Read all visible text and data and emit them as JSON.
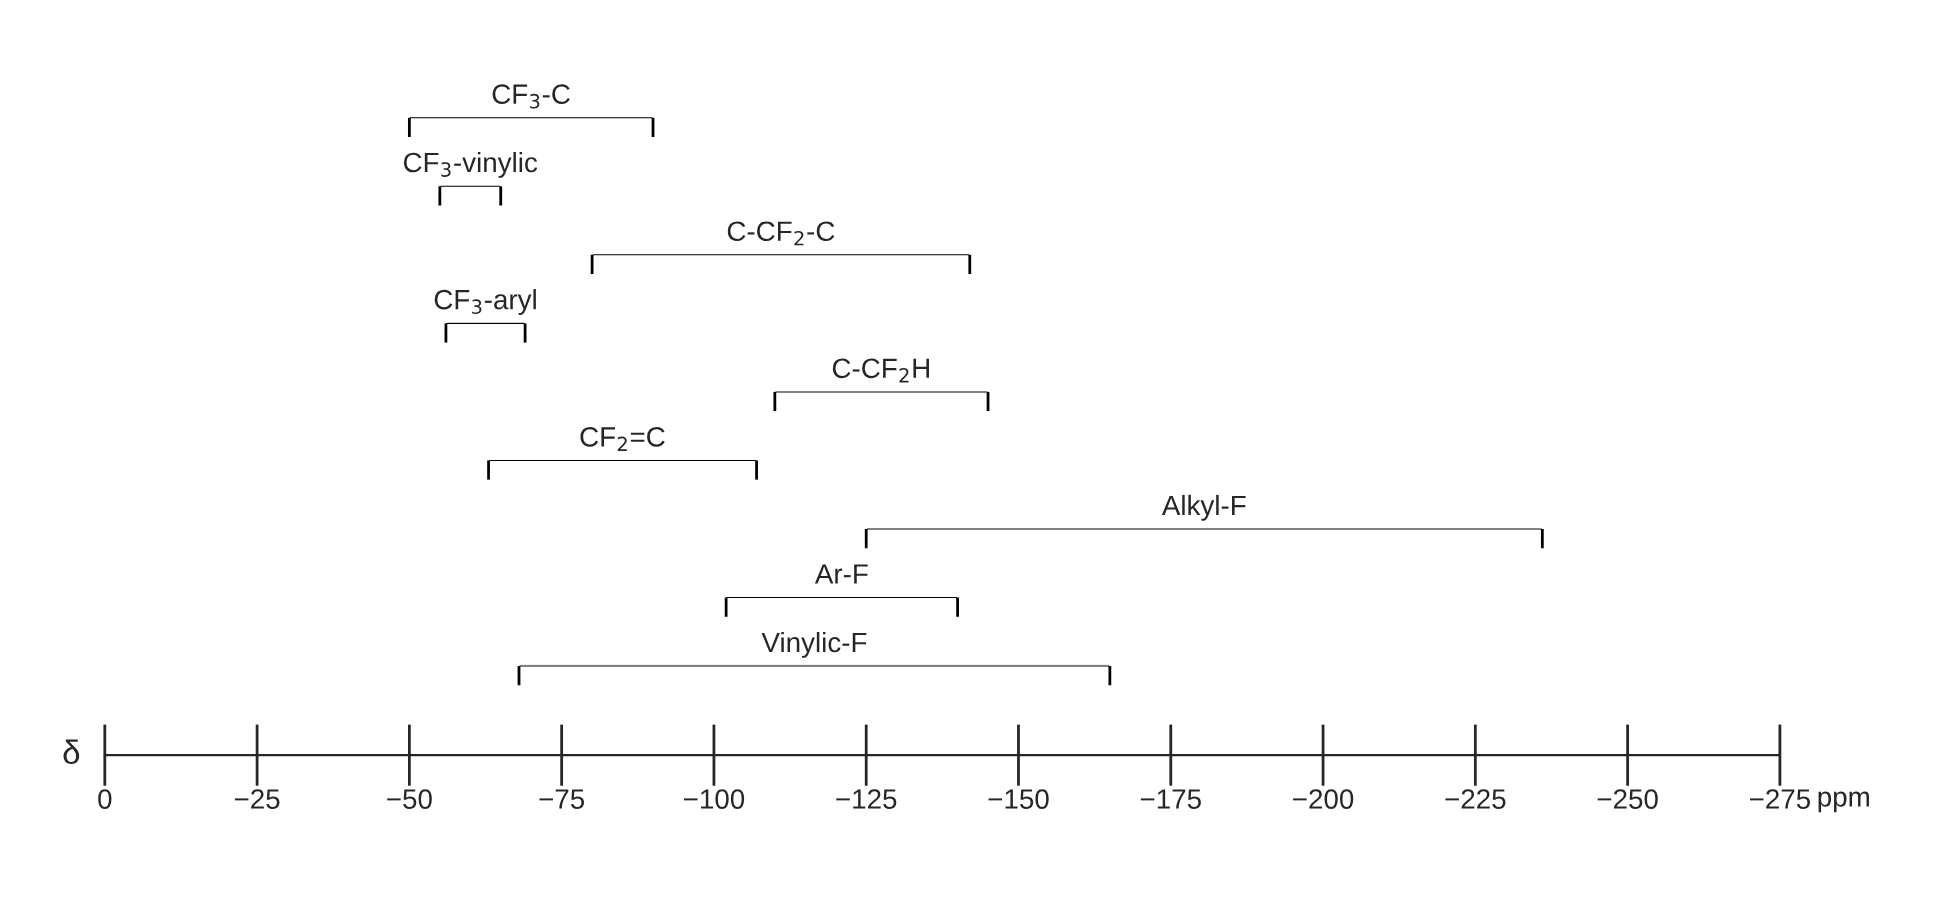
{
  "chart_data": {
    "type": "bar",
    "orientation": "horizontal",
    "color": "#000000",
    "categories": [
      "CF$_{3}$-C",
      "CF$_{3}$-vinylic",
      "C-CF$_{2}$-C",
      "CF$_{3}$-aryl",
      "C-CF$_{2}$H",
      "CF$_{2}$=C",
      "Alkyl-F",
      "Ar-F",
      "Vinylic-F"
    ],
    "base": [
      -50,
      -55,
      -80,
      -56,
      -110,
      -63,
      -125,
      -102,
      -68
    ],
    "values": [
      -40,
      -10,
      -62,
      -13,
      -35,
      -44,
      -111,
      -38,
      -97
    ],
    "xlim": [
      0,
      -275
    ],
    "xticks": [
      0,
      {
        "value": -25,
        "label": "−25"
      },
      {
        "value": -50,
        "label": "−50"
      },
      {
        "value": -75,
        "label": "−75"
      },
      {
        "value": -100,
        "label": "−100"
      },
      {
        "value": -125,
        "label": "−125"
      },
      {
        "value": -150,
        "label": "−150"
      },
      {
        "value": -175,
        "label": "−175"
      },
      {
        "value": -200,
        "label": "−200"
      },
      {
        "value": -225,
        "label": "−225"
      },
      {
        "value": -250,
        "label": "−250"
      },
      {
        "value": -275,
        "label": "−275"
      }
    ],
    "xlabel": "ppm",
    "ylabel": "δ",
    "grid": false,
    "legend": false
  }
}
